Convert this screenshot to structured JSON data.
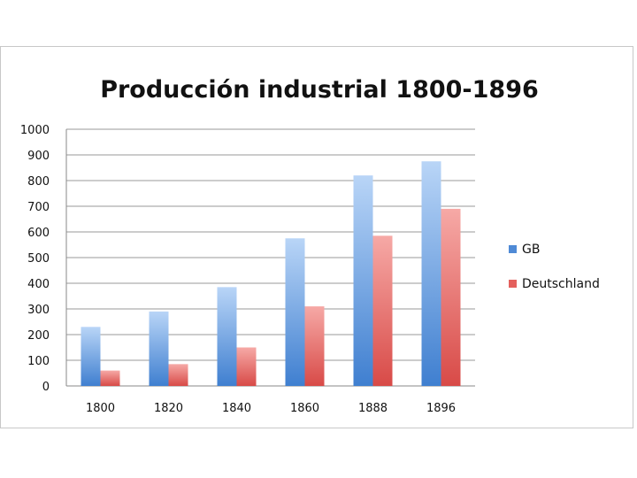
{
  "chart_data": {
    "type": "bar",
    "title": "Producción industrial 1800-1896",
    "xlabel": "",
    "ylabel": "",
    "categories": [
      "1800",
      "1820",
      "1840",
      "1860",
      "1888",
      "1896"
    ],
    "series": [
      {
        "name": "GB",
        "values": [
          230,
          290,
          385,
          575,
          820,
          875
        ]
      },
      {
        "name": "Deutschland",
        "values": [
          60,
          85,
          150,
          310,
          585,
          690
        ]
      }
    ],
    "ylim": [
      0,
      1000
    ],
    "yticks": [
      0,
      100,
      200,
      300,
      400,
      500,
      600,
      700,
      800,
      900,
      1000
    ],
    "grid": true,
    "legend_position": "right",
    "colors": {
      "GB_top": "#b9d5f7",
      "GB_bottom": "#3f7fd0",
      "Deutschland_top": "#f6a9a6",
      "Deutschland_bottom": "#d84a47"
    }
  }
}
